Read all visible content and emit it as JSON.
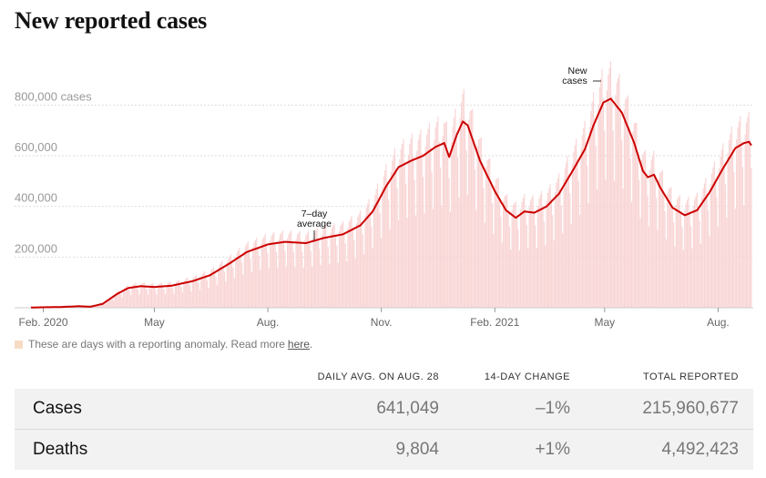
{
  "title": "New reported cases",
  "legend": {
    "text": "These are days with a reporting anomaly. Read more",
    "link": "here",
    "end": ".",
    "swatch_color": "#f7dcc4"
  },
  "annotations": {
    "avg_line1": "7–day",
    "avg_line2": "average",
    "cases_line1": "New",
    "cases_line2": "cases"
  },
  "chart_data": {
    "type": "bar",
    "title": "New reported cases",
    "xlabel": "",
    "ylabel": "cases",
    "x_range": [
      "2020-01-22",
      "2021-08-28"
    ],
    "ylim": [
      0,
      900000
    ],
    "y_ticks": [
      200000,
      400000,
      600000,
      800000
    ],
    "y_tick_labels": [
      "200,000",
      "400,000",
      "600,000",
      "800,000 cases"
    ],
    "x_ticks": [
      {
        "date": "2020-02-01",
        "label": "Feb. 2020"
      },
      {
        "date": "2020-05-01",
        "label": "May"
      },
      {
        "date": "2020-08-01",
        "label": "Aug."
      },
      {
        "date": "2020-11-01",
        "label": "Nov."
      },
      {
        "date": "2021-02-01",
        "label": "Feb. 2021"
      },
      {
        "date": "2021-05-01",
        "label": "May"
      },
      {
        "date": "2021-08-01",
        "label": "Aug."
      }
    ],
    "series": [
      {
        "name": "7-day average",
        "color": "#cc0000",
        "points": [
          [
            "2020-01-22",
            1000
          ],
          [
            "2020-02-15",
            3000
          ],
          [
            "2020-03-01",
            6000
          ],
          [
            "2020-03-10",
            4000
          ],
          [
            "2020-03-20",
            15000
          ],
          [
            "2020-04-01",
            55000
          ],
          [
            "2020-04-10",
            78000
          ],
          [
            "2020-04-20",
            85000
          ],
          [
            "2020-05-01",
            82000
          ],
          [
            "2020-05-15",
            87000
          ],
          [
            "2020-06-01",
            105000
          ],
          [
            "2020-06-15",
            128000
          ],
          [
            "2020-07-01",
            175000
          ],
          [
            "2020-07-15",
            220000
          ],
          [
            "2020-08-01",
            250000
          ],
          [
            "2020-08-15",
            260000
          ],
          [
            "2020-09-01",
            255000
          ],
          [
            "2020-09-15",
            275000
          ],
          [
            "2020-10-01",
            290000
          ],
          [
            "2020-10-15",
            325000
          ],
          [
            "2020-10-25",
            380000
          ],
          [
            "2020-11-05",
            480000
          ],
          [
            "2020-11-15",
            555000
          ],
          [
            "2020-11-25",
            580000
          ],
          [
            "2020-12-05",
            600000
          ],
          [
            "2020-12-15",
            635000
          ],
          [
            "2020-12-22",
            650000
          ],
          [
            "2020-12-26",
            595000
          ],
          [
            "2021-01-01",
            680000
          ],
          [
            "2021-01-06",
            735000
          ],
          [
            "2021-01-10",
            720000
          ],
          [
            "2021-01-20",
            580000
          ],
          [
            "2021-02-01",
            460000
          ],
          [
            "2021-02-10",
            385000
          ],
          [
            "2021-02-18",
            355000
          ],
          [
            "2021-02-25",
            380000
          ],
          [
            "2021-03-05",
            375000
          ],
          [
            "2021-03-15",
            400000
          ],
          [
            "2021-03-25",
            450000
          ],
          [
            "2021-04-05",
            540000
          ],
          [
            "2021-04-15",
            625000
          ],
          [
            "2021-04-22",
            720000
          ],
          [
            "2021-04-30",
            810000
          ],
          [
            "2021-05-06",
            825000
          ],
          [
            "2021-05-15",
            770000
          ],
          [
            "2021-05-25",
            650000
          ],
          [
            "2021-06-01",
            540000
          ],
          [
            "2021-06-05",
            515000
          ],
          [
            "2021-06-10",
            525000
          ],
          [
            "2021-06-15",
            475000
          ],
          [
            "2021-06-25",
            395000
          ],
          [
            "2021-07-05",
            365000
          ],
          [
            "2021-07-15",
            385000
          ],
          [
            "2021-07-25",
            455000
          ],
          [
            "2021-08-05",
            550000
          ],
          [
            "2021-08-15",
            630000
          ],
          [
            "2021-08-22",
            650000
          ],
          [
            "2021-08-26",
            655000
          ],
          [
            "2021-08-28",
            641049
          ]
        ]
      }
    ]
  },
  "table": {
    "headers": [
      "Daily avg. on Aug. 28",
      "14-day change",
      "Total reported"
    ],
    "rows": [
      {
        "label": "Cases",
        "daily_avg": "641,049",
        "change": "–1%",
        "total": "215,960,677"
      },
      {
        "label": "Deaths",
        "daily_avg": "9,804",
        "change": "+1%",
        "total": "4,492,423"
      }
    ]
  }
}
